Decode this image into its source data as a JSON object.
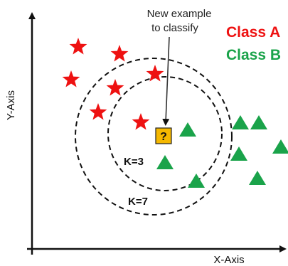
{
  "labels": {
    "class_a": "Class A",
    "class_b": "Class B",
    "y_axis": "Y-Axis",
    "x_axis": "X-Axis",
    "new_example_line1": "New example",
    "new_example_line2": "to classify",
    "query_symbol": "?",
    "k3": "K=3",
    "k7": "K=7"
  },
  "colors": {
    "class_a": "#ee1111",
    "class_b": "#1aa34a",
    "query": "#f5b800",
    "axis": "#111111",
    "circle": "#111111"
  },
  "icons": {
    "class_a_marker": "star-icon",
    "class_b_marker": "triangle-icon",
    "query_marker": "question-square-icon"
  }
}
